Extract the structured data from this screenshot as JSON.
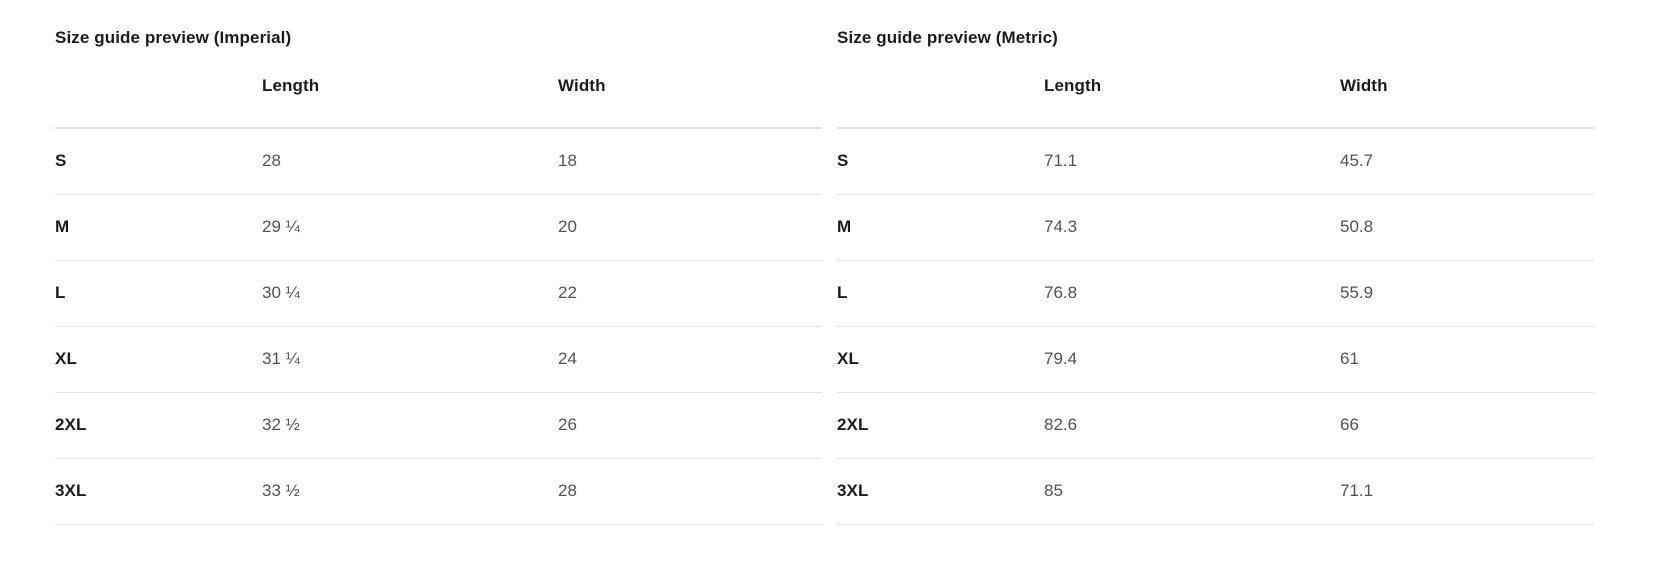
{
  "tables": {
    "imperial": {
      "title": "Size guide preview (Imperial)",
      "columns": {
        "length": "Length",
        "width": "Width"
      },
      "rows": [
        {
          "size": "S",
          "length": "28",
          "width": "18"
        },
        {
          "size": "M",
          "length": "29 ¼",
          "width": "20"
        },
        {
          "size": "L",
          "length": "30 ¼",
          "width": "22"
        },
        {
          "size": "XL",
          "length": "31 ¼",
          "width": "24"
        },
        {
          "size": "2XL",
          "length": "32 ½",
          "width": "26"
        },
        {
          "size": "3XL",
          "length": "33 ½",
          "width": "28"
        }
      ]
    },
    "metric": {
      "title": "Size guide preview (Metric)",
      "columns": {
        "length": "Length",
        "width": "Width"
      },
      "rows": [
        {
          "size": "S",
          "length": "71.1",
          "width": "45.7"
        },
        {
          "size": "M",
          "length": "74.3",
          "width": "50.8"
        },
        {
          "size": "L",
          "length": "76.8",
          "width": "55.9"
        },
        {
          "size": "XL",
          "length": "79.4",
          "width": "61"
        },
        {
          "size": "2XL",
          "length": "82.6",
          "width": "66"
        },
        {
          "size": "3XL",
          "length": "85",
          "width": "71.1"
        }
      ]
    }
  },
  "colors": {
    "heading_text": "#1c1c1c",
    "value_text": "#525252",
    "header_divider": "#e0e0e0",
    "row_divider": "#e4e4e4",
    "background": "#ffffff"
  }
}
